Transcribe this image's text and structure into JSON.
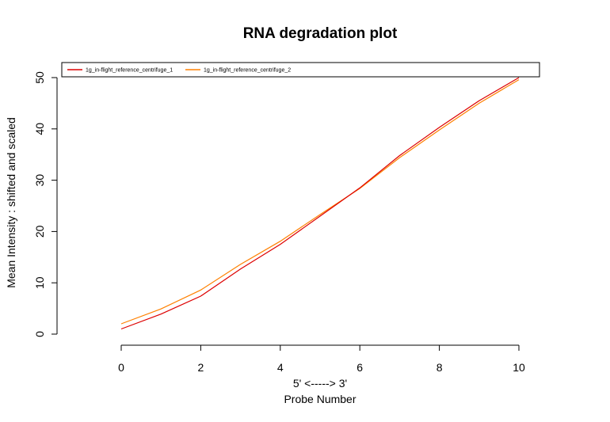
{
  "chart_data": {
    "type": "line",
    "title": "RNA degradation plot",
    "xlabel_line1": "5' <-----> 3'",
    "xlabel_line2": "Probe Number",
    "ylabel": "Mean Intensity : shifted and scaled",
    "x": [
      0,
      1,
      2,
      3,
      4,
      5,
      6,
      7,
      8,
      9,
      10
    ],
    "xlim": [
      -1.4,
      11.4
    ],
    "ylim": [
      0,
      50.5
    ],
    "xticks": [
      0,
      2,
      4,
      6,
      8,
      10
    ],
    "yticks": [
      0,
      10,
      20,
      30,
      40,
      50
    ],
    "legend_position": "top",
    "grid": false,
    "series": [
      {
        "name": "1g_in-flight_reference_centrifuge_1",
        "color": "#dd0000",
        "values": [
          1.0,
          3.9,
          7.4,
          12.7,
          17.5,
          23.0,
          28.5,
          34.8,
          40.3,
          45.5,
          50.0
        ]
      },
      {
        "name": "1g_in-flight_reference_centrifuge_2",
        "color": "#ff8000",
        "values": [
          2.0,
          4.9,
          8.6,
          13.6,
          18.1,
          23.3,
          28.4,
          34.4,
          39.8,
          45.0,
          49.6
        ]
      }
    ]
  }
}
